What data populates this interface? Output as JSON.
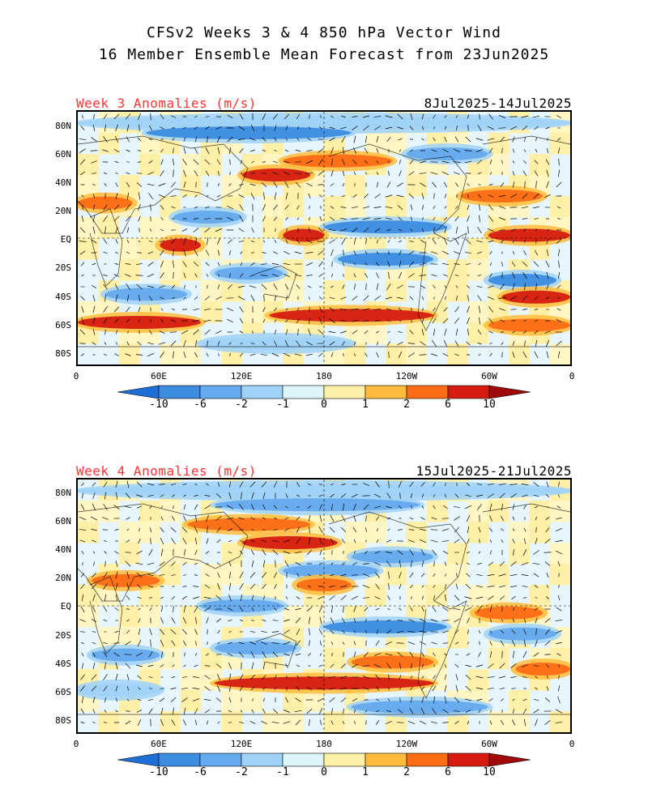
{
  "title": {
    "line1": "CFSv2 Weeks 3 & 4 850 hPa Vector Wind",
    "line2": "16 Member Ensemble Mean Forecast from 23Jun2025"
  },
  "chart_data": [
    {
      "type": "heatmap",
      "title": "Week 3 Anomalies (m/s)",
      "date_range": "8Jul2025-14Jul2025",
      "y_tick_labels": [
        "80N",
        "60N",
        "40N",
        "20N",
        "EQ",
        "20S",
        "40S",
        "60S",
        "80S"
      ],
      "x_tick_labels": [
        "0",
        "60E",
        "120E",
        "180",
        "120W",
        "60W",
        "0"
      ],
      "ylim": [
        -90,
        90
      ],
      "xlim": [
        0,
        360
      ],
      "overlay": "wind vectors",
      "bands": [
        {
          "lat": 82,
          "lon": [
            0,
            360
          ],
          "value": -1
        },
        {
          "lat": 75,
          "lon": [
            50,
            200
          ],
          "value": -6
        },
        {
          "lat": 60,
          "lon": [
            240,
            300
          ],
          "value": -2
        },
        {
          "lat": 55,
          "lon": [
            150,
            230
          ],
          "value": 2
        },
        {
          "lat": 45,
          "lon": [
            120,
            170
          ],
          "value": 6
        },
        {
          "lat": 30,
          "lon": [
            280,
            340
          ],
          "value": 2
        },
        {
          "lat": 25,
          "lon": [
            0,
            40
          ],
          "value": 2
        },
        {
          "lat": 15,
          "lon": [
            70,
            120
          ],
          "value": -2
        },
        {
          "lat": 8,
          "lon": [
            180,
            270
          ],
          "value": -6
        },
        {
          "lat": 2,
          "lon": [
            300,
            360
          ],
          "value": 6
        },
        {
          "lat": 2,
          "lon": [
            150,
            180
          ],
          "value": 6
        },
        {
          "lat": -5,
          "lon": [
            60,
            90
          ],
          "value": 6
        },
        {
          "lat": -15,
          "lon": [
            190,
            260
          ],
          "value": -6
        },
        {
          "lat": -25,
          "lon": [
            100,
            150
          ],
          "value": -2
        },
        {
          "lat": -30,
          "lon": [
            300,
            350
          ],
          "value": -6
        },
        {
          "lat": -40,
          "lon": [
            20,
            80
          ],
          "value": -2
        },
        {
          "lat": -42,
          "lon": [
            310,
            360
          ],
          "value": 6
        },
        {
          "lat": -55,
          "lon": [
            140,
            260
          ],
          "value": 6
        },
        {
          "lat": -60,
          "lon": [
            0,
            90
          ],
          "value": 6
        },
        {
          "lat": -62,
          "lon": [
            300,
            360
          ],
          "value": 2
        },
        {
          "lat": -75,
          "lon": [
            90,
            200
          ],
          "value": -1
        }
      ]
    },
    {
      "type": "heatmap",
      "title": "Week 4 Anomalies (m/s)",
      "date_range": "15Jul2025-21Jul2025",
      "y_tick_labels": [
        "80N",
        "60N",
        "40N",
        "20N",
        "EQ",
        "20S",
        "40S",
        "60S",
        "80S"
      ],
      "x_tick_labels": [
        "0",
        "60E",
        "120E",
        "180",
        "120W",
        "60W",
        "0"
      ],
      "ylim": [
        -90,
        90
      ],
      "xlim": [
        0,
        360
      ],
      "overlay": "wind vectors",
      "bands": [
        {
          "lat": 82,
          "lon": [
            0,
            360
          ],
          "value": -1
        },
        {
          "lat": 72,
          "lon": [
            100,
            250
          ],
          "value": -2
        },
        {
          "lat": 58,
          "lon": [
            80,
            170
          ],
          "value": 2
        },
        {
          "lat": 45,
          "lon": [
            120,
            190
          ],
          "value": 6
        },
        {
          "lat": 35,
          "lon": [
            200,
            260
          ],
          "value": -2
        },
        {
          "lat": 25,
          "lon": [
            150,
            220
          ],
          "value": -2
        },
        {
          "lat": 18,
          "lon": [
            10,
            60
          ],
          "value": 2
        },
        {
          "lat": 15,
          "lon": [
            160,
            200
          ],
          "value": 2
        },
        {
          "lat": 0,
          "lon": [
            90,
            150
          ],
          "value": -2
        },
        {
          "lat": -5,
          "lon": [
            290,
            340
          ],
          "value": 2
        },
        {
          "lat": -15,
          "lon": [
            180,
            270
          ],
          "value": -6
        },
        {
          "lat": -20,
          "lon": [
            300,
            350
          ],
          "value": -2
        },
        {
          "lat": -30,
          "lon": [
            100,
            160
          ],
          "value": -2
        },
        {
          "lat": -35,
          "lon": [
            10,
            60
          ],
          "value": -2
        },
        {
          "lat": -40,
          "lon": [
            200,
            260
          ],
          "value": 2
        },
        {
          "lat": -45,
          "lon": [
            320,
            360
          ],
          "value": 2
        },
        {
          "lat": -55,
          "lon": [
            100,
            260
          ],
          "value": 6
        },
        {
          "lat": -60,
          "lon": [
            0,
            60
          ],
          "value": -1
        },
        {
          "lat": -72,
          "lon": [
            200,
            300
          ],
          "value": -2
        }
      ]
    }
  ],
  "colorbar": {
    "labels": [
      "-10",
      "-6",
      "-2",
      "-1",
      "0",
      "1",
      "2",
      "6",
      "10"
    ],
    "colors": [
      "#1e6ed6",
      "#3c8ce0",
      "#64aaee",
      "#a0d2f8",
      "#dcf4fa",
      "#fff0a8",
      "#ffbc3c",
      "#fc6c14",
      "#d61c10",
      "#a00a0a"
    ]
  },
  "colors": {
    "neutral_positive": "#fff6c4",
    "neutral_negative": "#e6f6fc",
    "title_red": "#ff3333"
  }
}
